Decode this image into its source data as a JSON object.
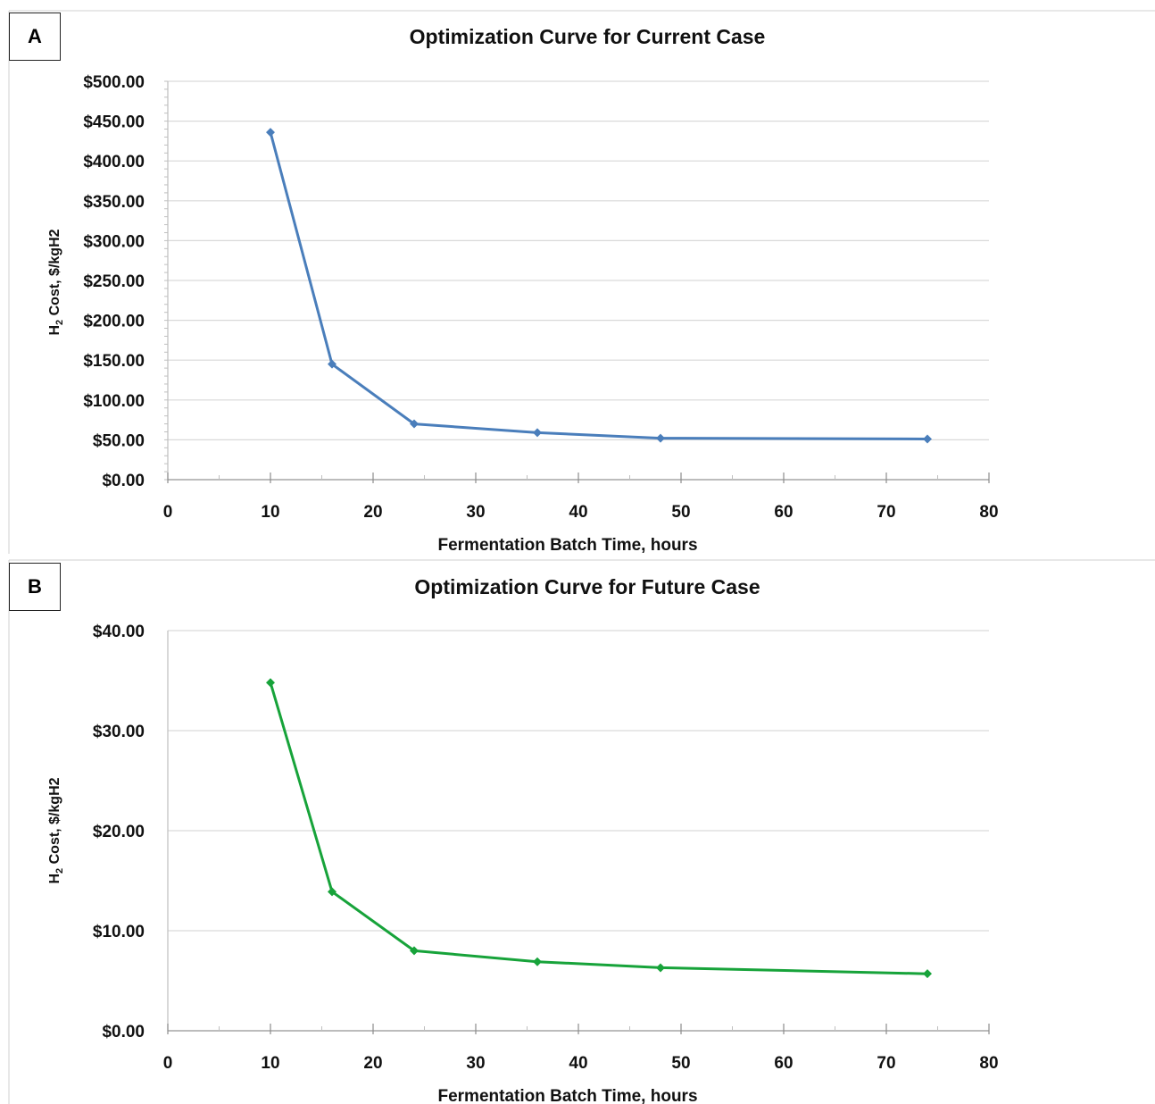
{
  "panels": {
    "a": {
      "label": "A"
    },
    "b": {
      "label": "B"
    }
  },
  "chart_data": [
    {
      "type": "line",
      "title": "Optimization Curve for Current Case",
      "xlabel": "Fermentation Batch Time, hours",
      "ylabel_main": "H",
      "ylabel_sub": "2",
      "ylabel_rest": " Cost, $/kgH2",
      "xlim": [
        0,
        80
      ],
      "ylim": [
        0,
        500
      ],
      "x_ticks": [
        0,
        10,
        20,
        30,
        40,
        50,
        60,
        70,
        80
      ],
      "x_tick_labels": [
        "0",
        "10",
        "20",
        "30",
        "40",
        "50",
        "60",
        "70",
        "80"
      ],
      "y_ticks": [
        0,
        50,
        100,
        150,
        200,
        250,
        300,
        350,
        400,
        450,
        500
      ],
      "y_tick_labels": [
        "$0.00",
        "$50.00",
        "$100.00",
        "$150.00",
        "$200.00",
        "$250.00",
        "$300.00",
        "$350.00",
        "$400.00",
        "$450.00",
        "$500.00"
      ],
      "grid": true,
      "color": "#4a7ebb",
      "marker": "diamond",
      "series": [
        {
          "x": [
            10,
            16,
            24,
            36,
            48,
            74
          ],
          "y": [
            436,
            145,
            70,
            59,
            52,
            51
          ]
        }
      ]
    },
    {
      "type": "line",
      "title": "Optimization Curve for Future Case",
      "xlabel": "Fermentation Batch Time, hours",
      "ylabel_main": "H",
      "ylabel_sub": "2",
      "ylabel_rest": " Cost, $/kgH2",
      "xlim": [
        0,
        80
      ],
      "ylim": [
        0,
        40
      ],
      "x_ticks": [
        0,
        10,
        20,
        30,
        40,
        50,
        60,
        70,
        80
      ],
      "x_tick_labels": [
        "0",
        "10",
        "20",
        "30",
        "40",
        "50",
        "60",
        "70",
        "80"
      ],
      "y_ticks": [
        0,
        10,
        20,
        30,
        40
      ],
      "y_tick_labels": [
        "$0.00",
        "$10.00",
        "$20.00",
        "$30.00",
        "$40.00"
      ],
      "grid": true,
      "color": "#17a33a",
      "marker": "diamond",
      "series": [
        {
          "x": [
            10,
            16,
            24,
            36,
            48,
            74
          ],
          "y": [
            34.8,
            13.9,
            8.0,
            6.9,
            6.3,
            5.7
          ]
        }
      ]
    }
  ]
}
